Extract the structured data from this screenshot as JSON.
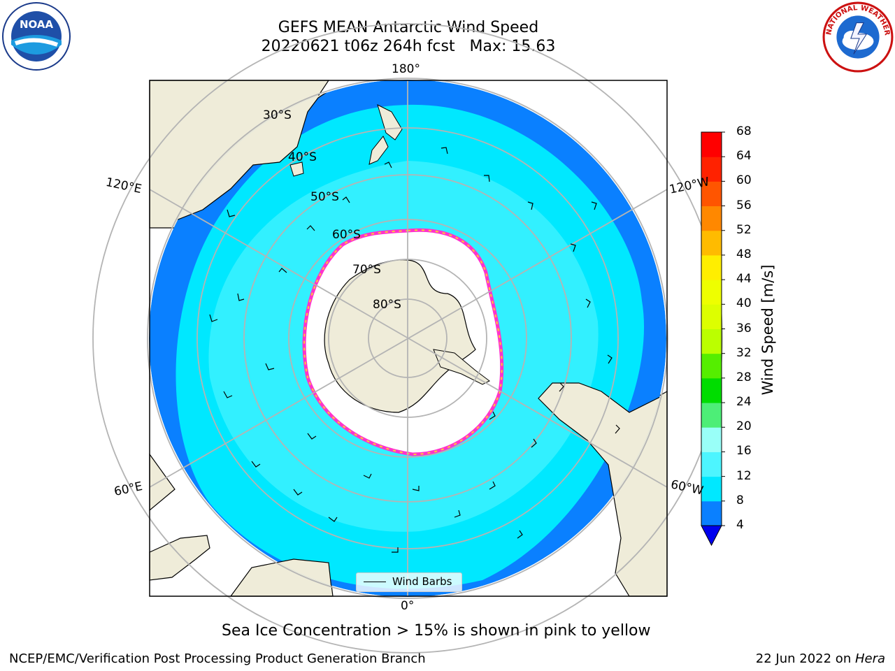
{
  "header": {
    "title_line1": "GEFS MEAN Antarctic Wind Speed",
    "title_line2": "20220621 t06z 264h fcst   Max: 15.63"
  },
  "map": {
    "projection": "south-polar-stereographic",
    "lon_labels": {
      "top": "180°",
      "bottom": "0°",
      "upper_left": "120°E",
      "upper_right": "120°W",
      "lower_left": "60°E",
      "lower_right": "60°W"
    },
    "lat_labels": [
      "30°S",
      "40°S",
      "50°S",
      "60°S",
      "70°S",
      "80°S"
    ],
    "legend": {
      "label": "Wind Barbs"
    },
    "colors": {
      "ocean_outer": "#0a80ff",
      "ocean_main": "#00e8ff",
      "ocean_light": "#4df5ff",
      "land": "#efecd9",
      "sea_ice_edge": "#ff33cc",
      "sea_ice_yellow": "#ffcc33"
    }
  },
  "colorbar": {
    "label": "Wind Speed [m/s]",
    "ticks": [
      "68",
      "64",
      "60",
      "56",
      "52",
      "48",
      "44",
      "40",
      "36",
      "32",
      "28",
      "24",
      "20",
      "16",
      "12",
      "8",
      "4"
    ],
    "colors": [
      "#0000ee",
      "#0a80ff",
      "#00e8ff",
      "#4df5ff",
      "#99fff8",
      "#4dee77",
      "#00dd00",
      "#55ee00",
      "#bbff00",
      "#ddff00",
      "#eeff00",
      "#ffee00",
      "#ffbb00",
      "#ff8800",
      "#ff5500",
      "#ff2200",
      "#ff0000"
    ]
  },
  "footer": {
    "note": "Sea Ice Concentration > 15% is shown in pink to yellow",
    "left": "NCEP/EMC/Verification Post Processing Product Generation Branch",
    "right_prefix": "22 Jun 2022 on ",
    "right_host": "Hera"
  },
  "logos": {
    "left": "noaa-logo",
    "right": "nws-logo",
    "left_text": "NOAA",
    "right_text": "NATIONAL WEATHER SERVICE"
  }
}
